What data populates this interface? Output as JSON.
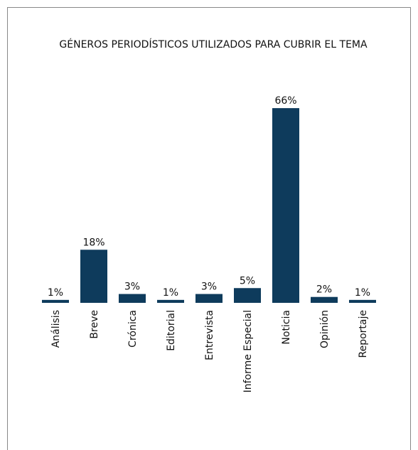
{
  "chart_data": {
    "type": "bar",
    "title": "GÉNEROS PERIODÍSTICOS UTILIZADOS PARA CUBRIR EL TEMA",
    "categories": [
      "Análisis",
      "Breve",
      "Crónica",
      "Editorial",
      "Entrevista",
      "Informe Especial",
      "Noticia",
      "Opinión",
      "Reportaje"
    ],
    "values": [
      1,
      18,
      3,
      1,
      3,
      5,
      66,
      2,
      1
    ],
    "value_labels": [
      "1%",
      "18%",
      "3%",
      "1%",
      "3%",
      "5%",
      "66%",
      "2%",
      "1%"
    ],
    "color": "#0e3b5c"
  }
}
